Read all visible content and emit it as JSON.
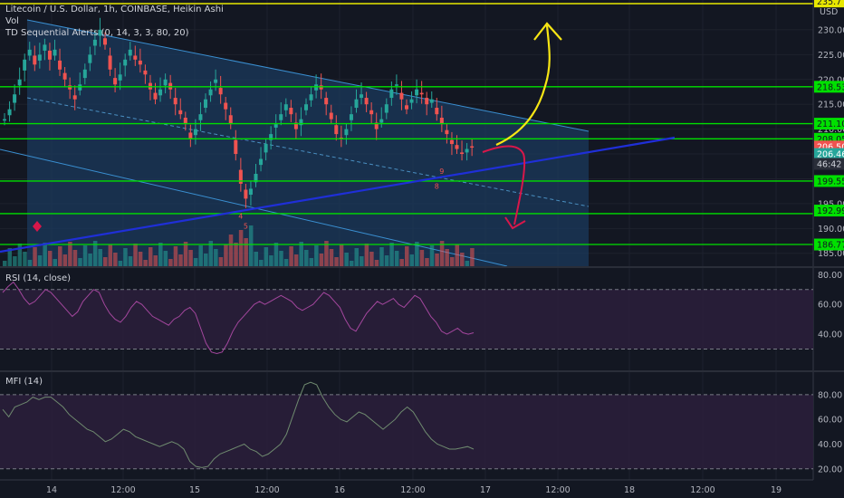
{
  "header": {
    "title": "Litecoin / U.S. Dollar, 1h, COINBASE, Heikin Ashi",
    "vol_label": "Vol",
    "td_label": "TD Sequential Alerts (0, 14, 3, 3, 80, 20)"
  },
  "colors": {
    "background": "#131722",
    "bull": "#26a69a",
    "bear": "#ef5350",
    "hline": "#00e000",
    "channel": "#2f6f9e",
    "trendline": "#1f2fd8",
    "rsi_line": "#a4479e",
    "mfi_line": "#6f8a6f",
    "arrow_up": "#f7e614",
    "arrow_down": "#d8174a",
    "top_line": "#e8e800"
  },
  "chart_data": [
    {
      "type": "candlestick",
      "title": "Litecoin / U.S. Dollar, 1h, COINBASE, Heikin Ashi",
      "y_axis_unit": "USD",
      "ylim": [
        182.4,
        236.0
      ],
      "x_ticks": [
        "14",
        "12:00",
        "15",
        "12:00",
        "16",
        "12:00",
        "17",
        "12:00",
        "18",
        "12:00",
        "19"
      ],
      "y_ticks": [
        185.0,
        190.0,
        195.0,
        200.0,
        205.0,
        210.0,
        215.0,
        220.0,
        225.0,
        230.0
      ],
      "horizontal_levels": [
        235.7,
        218.53,
        211.1,
        208.05,
        199.55,
        192.99,
        186.77
      ],
      "price_tags": [
        {
          "label": "235.7",
          "value": 235.7,
          "color": "#e8e800",
          "text_color": "#131722"
        },
        {
          "label": "218.53",
          "value": 218.53,
          "color": "#00e000",
          "text_color": "#131722"
        },
        {
          "label": "211.10",
          "value": 211.1,
          "color": "#00e000",
          "text_color": "#131722"
        },
        {
          "label": "208.05",
          "value": 208.05,
          "color": "#00e000",
          "text_color": "#131722"
        },
        {
          "label": "206.50",
          "value": 206.5,
          "color": "#ef5350",
          "text_color": "#ffffff"
        },
        {
          "label": "206.46",
          "value": 205.0,
          "color": "#26a69a",
          "text_color": "#ffffff"
        },
        {
          "label": "46:42",
          "value": 203.0,
          "color": "#2a2e39",
          "text_color": "#d1d4dc"
        },
        {
          "label": "199.55",
          "value": 199.55,
          "color": "#00e000",
          "text_color": "#131722"
        },
        {
          "label": "192.99",
          "value": 193.6,
          "color": "#00e000",
          "text_color": "#131722"
        },
        {
          "label": "186.77",
          "value": 186.77,
          "color": "#00e000",
          "text_color": "#131722"
        }
      ],
      "heikin_ashi_close": [
        212,
        214,
        217,
        220,
        224,
        226,
        223,
        225,
        227,
        224,
        226,
        222,
        220,
        218,
        216,
        219,
        222,
        225,
        228,
        230,
        227,
        222,
        219,
        221,
        224,
        226,
        224,
        223,
        221,
        218,
        216,
        218,
        220,
        218,
        215,
        213,
        211,
        208,
        210,
        213,
        216,
        218,
        220,
        217,
        214,
        211,
        205,
        199,
        196,
        198,
        201,
        204,
        207,
        209,
        211,
        213,
        215,
        213,
        210,
        212,
        215,
        217,
        219,
        218,
        215,
        212,
        209,
        208,
        210,
        213,
        216,
        217,
        215,
        213,
        210,
        212,
        215,
        218,
        219,
        216,
        214,
        216,
        218,
        217,
        215,
        216,
        213,
        211,
        209,
        207,
        206,
        205,
        206,
        206.5
      ],
      "markers": [
        {
          "label": "4",
          "x_index": 47,
          "value": 192
        },
        {
          "label": "5",
          "x_index": 48,
          "value": 190
        },
        {
          "label": "8",
          "x_index": 86,
          "value": 198
        },
        {
          "label": "9",
          "x_index": 87,
          "value": 201
        }
      ]
    },
    {
      "type": "line",
      "title": "RSI (14, close)",
      "ylim": [
        20,
        82
      ],
      "y_ticks": [
        40.0,
        60.0,
        80.0
      ],
      "bands": [
        30,
        70
      ],
      "series": [
        {
          "name": "RSI",
          "values": [
            68,
            72,
            75,
            70,
            64,
            60,
            62,
            66,
            70,
            68,
            64,
            60,
            56,
            52,
            55,
            62,
            66,
            70,
            68,
            60,
            54,
            50,
            48,
            52,
            58,
            62,
            60,
            56,
            52,
            50,
            48,
            46,
            50,
            52,
            56,
            58,
            54,
            44,
            34,
            28,
            27,
            28,
            34,
            42,
            48,
            52,
            56,
            60,
            62,
            60,
            62,
            64,
            66,
            64,
            62,
            58,
            56,
            58,
            60,
            64,
            68,
            66,
            62,
            58,
            50,
            44,
            42,
            48,
            54,
            58,
            62,
            60,
            62,
            64,
            60,
            58,
            62,
            66,
            64,
            58,
            52,
            48,
            42,
            40,
            42,
            44,
            41,
            40,
            41
          ]
        }
      ]
    },
    {
      "type": "line",
      "title": "MFI (14)",
      "ylim": [
        14,
        96
      ],
      "y_ticks": [
        20.0,
        40.0,
        60.0,
        80.0
      ],
      "bands": [
        20,
        80
      ],
      "series": [
        {
          "name": "MFI",
          "values": [
            68,
            62,
            70,
            72,
            74,
            78,
            76,
            78,
            78,
            74,
            70,
            64,
            60,
            56,
            52,
            50,
            46,
            42,
            44,
            48,
            52,
            50,
            46,
            44,
            42,
            40,
            38,
            40,
            42,
            40,
            36,
            26,
            22,
            21,
            22,
            28,
            32,
            34,
            36,
            38,
            40,
            36,
            34,
            30,
            32,
            36,
            40,
            48,
            62,
            76,
            88,
            90,
            88,
            78,
            70,
            64,
            60,
            58,
            62,
            66,
            64,
            60,
            56,
            52,
            56,
            60,
            66,
            70,
            66,
            58,
            50,
            44,
            40,
            38,
            36,
            36,
            37,
            38,
            36
          ]
        }
      ]
    }
  ],
  "panes": {
    "rsi_label": "RSI (14, close)",
    "mfi_label": "MFI (14)"
  }
}
